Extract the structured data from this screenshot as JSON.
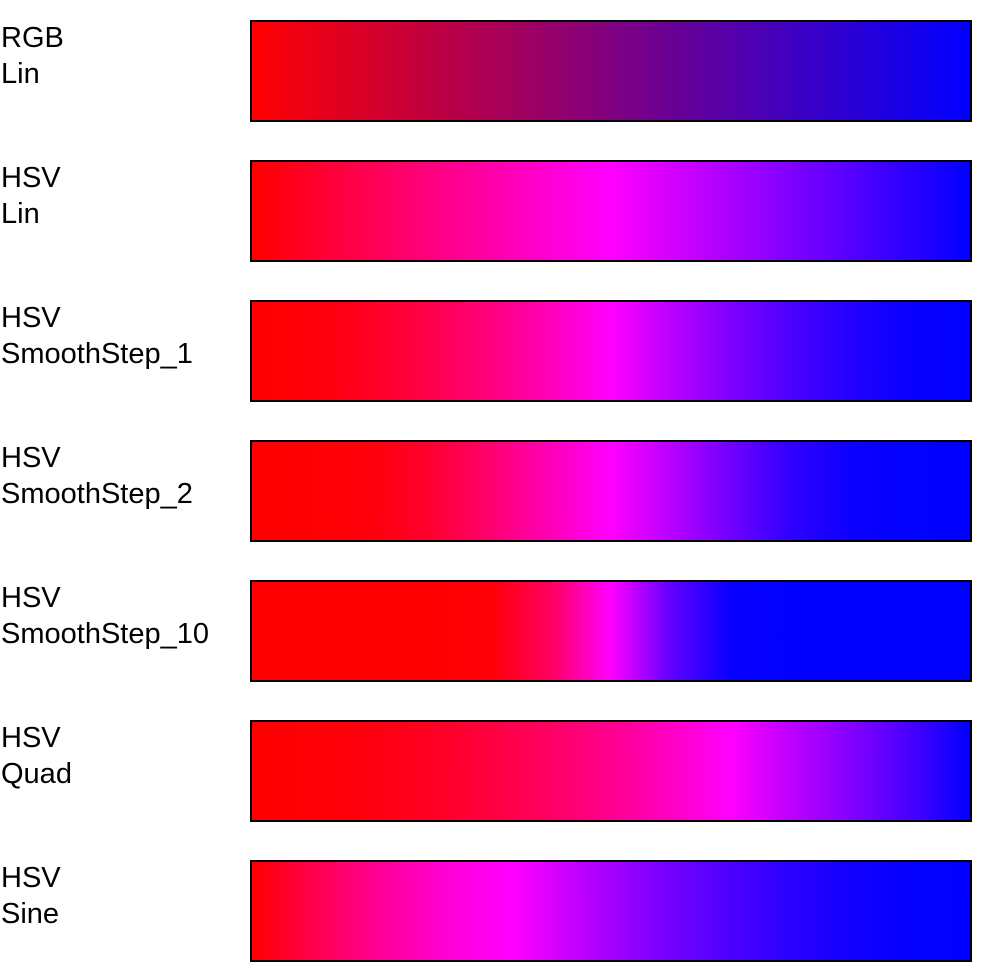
{
  "gradients": [
    {
      "space": "RGB",
      "mode": "Lin",
      "colors": [
        "#ff0000",
        "#e6001a",
        "#cc0033",
        "#b3004d",
        "#990066",
        "#800080",
        "#660099",
        "#4d00b3",
        "#3300cc",
        "#1a00e6",
        "#0000ff"
      ]
    },
    {
      "space": "HSV",
      "mode": "Lin",
      "colors": [
        "#ff0000",
        "#ff0033",
        "#ff0066",
        "#ff0099",
        "#ff00cc",
        "#ff00ff",
        "#cc00ff",
        "#9900ff",
        "#6600ff",
        "#3300ff",
        "#0000ff"
      ]
    },
    {
      "space": "HSV",
      "mode": "SmoothStep_1",
      "colors": [
        "#ff0000",
        "#ff0009",
        "#ff0024",
        "#ff004c",
        "#ff007f",
        "#ff00bb",
        "#ff00ff",
        "#bb00ff",
        "#7f00ff",
        "#4c00ff",
        "#2400ff",
        "#0900ff",
        "#0000ff"
      ]
    },
    {
      "space": "HSV",
      "mode": "SmoothStep_2",
      "colors": [
        "#ff0000",
        "#ff0002",
        "#ff000c",
        "#ff0030",
        "#ff0070",
        "#ff00b8",
        "#ff00ff",
        "#b800ff",
        "#7000ff",
        "#3000ff",
        "#0c00ff",
        "#0200ff",
        "#0000ff"
      ]
    },
    {
      "space": "HSV",
      "mode": "SmoothStep_10",
      "colors": [
        "#ff0000",
        "#ff0000",
        "#ff0000",
        "#ff0000",
        "#ff0008",
        "#ff0060",
        "#ff00ff",
        "#6000ff",
        "#0800ff",
        "#0000ff",
        "#0000ff",
        "#0000ff",
        "#0000ff"
      ]
    },
    {
      "space": "HSV",
      "mode": "Quad",
      "colors": [
        "#ff0000",
        "#ff0003",
        "#ff000a",
        "#ff0017",
        "#ff0029",
        "#ff0040",
        "#ff005c",
        "#ff007d",
        "#ff00a3",
        "#ff00cf",
        "#ff00ff",
        "#ca00ff",
        "#9b00ff",
        "#6d00ff",
        "#3b00ff",
        "#0000ff"
      ]
    },
    {
      "space": "HSV",
      "mode": "Sine",
      "colors": [
        "#ff0000",
        "#ff0050",
        "#ff0099",
        "#ff00d6",
        "#ff00ff",
        "#c000ff",
        "#8800ff",
        "#5a00ff",
        "#3300ff",
        "#1600ff",
        "#0500ff",
        "#0000ff"
      ]
    }
  ]
}
